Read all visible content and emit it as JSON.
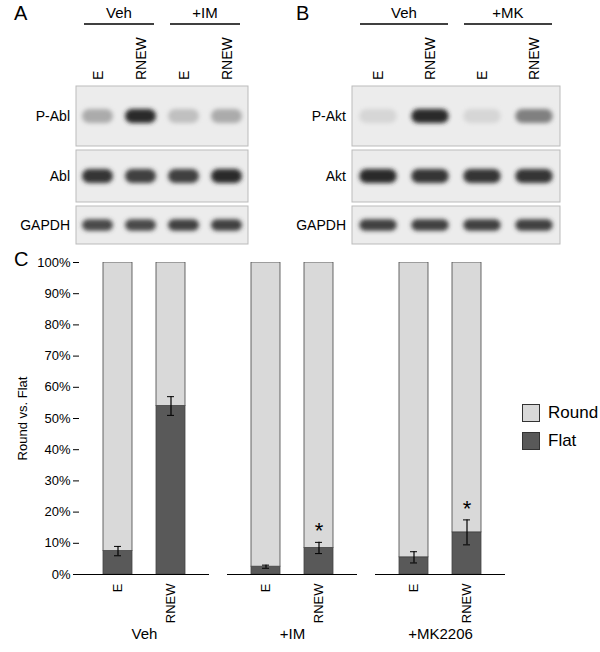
{
  "panels": [
    {
      "label": "A",
      "treatments": [
        "Veh",
        "+IM"
      ],
      "lanes": [
        "E",
        "RNEW",
        "E",
        "RNEW"
      ],
      "rows": [
        {
          "label": "P-Abl",
          "intensity": [
            0.3,
            0.9,
            0.2,
            0.3
          ]
        },
        {
          "label": "Abl",
          "intensity": [
            0.85,
            0.8,
            0.8,
            0.9
          ]
        },
        {
          "label": "GAPDH",
          "intensity": [
            0.75,
            0.75,
            0.8,
            0.8
          ]
        }
      ]
    },
    {
      "label": "B",
      "treatments": [
        "Veh",
        "+MK"
      ],
      "lanes": [
        "E",
        "RNEW",
        "E",
        "RNEW"
      ],
      "rows": [
        {
          "label": "P-Akt",
          "intensity": [
            0.1,
            0.9,
            0.1,
            0.5
          ]
        },
        {
          "label": "Akt",
          "intensity": [
            0.9,
            0.85,
            0.85,
            0.85
          ]
        },
        {
          "label": "GAPDH",
          "intensity": [
            0.8,
            0.8,
            0.8,
            0.8
          ]
        }
      ]
    }
  ],
  "chart_data": {
    "type": "bar",
    "panel_label": "C",
    "stacked": true,
    "y_label": "Round vs. Flat",
    "categories": [
      "E",
      "RNEW",
      "E",
      "RNEW",
      "E",
      "RNEW"
    ],
    "groups": [
      "Veh",
      "Veh",
      "+IM",
      "+IM",
      "+MK2206",
      "+MK2206"
    ],
    "series": [
      {
        "name": "Round",
        "color": "#d9d9d9",
        "values": [
          92.5,
          46,
          97.5,
          91.5,
          94.5,
          86.5
        ]
      },
      {
        "name": "Flat",
        "color": "#595959",
        "values": [
          7.5,
          54,
          2.5,
          8.5,
          5.5,
          13.5
        ],
        "errors": [
          1.5,
          3,
          0.5,
          1.8,
          1.8,
          4
        ]
      }
    ],
    "annotations": [
      {
        "index": 3,
        "text": "*"
      },
      {
        "index": 5,
        "text": "*"
      }
    ],
    "ylim": [
      0,
      100
    ],
    "yticks": [
      {
        "value": 0,
        "label": "0%"
      },
      {
        "value": 10,
        "label": "10%"
      },
      {
        "value": 20,
        "label": "20%"
      },
      {
        "value": 30,
        "label": "30%"
      },
      {
        "value": 40,
        "label": "40%"
      },
      {
        "value": 50,
        "label": "50%"
      },
      {
        "value": 60,
        "label": "60%"
      },
      {
        "value": 70,
        "label": "70%"
      },
      {
        "value": 80,
        "label": "80%"
      },
      {
        "value": 90,
        "label": "90%"
      },
      {
        "value": 100,
        "label": "100%"
      }
    ],
    "grid": false,
    "legend": "right"
  }
}
